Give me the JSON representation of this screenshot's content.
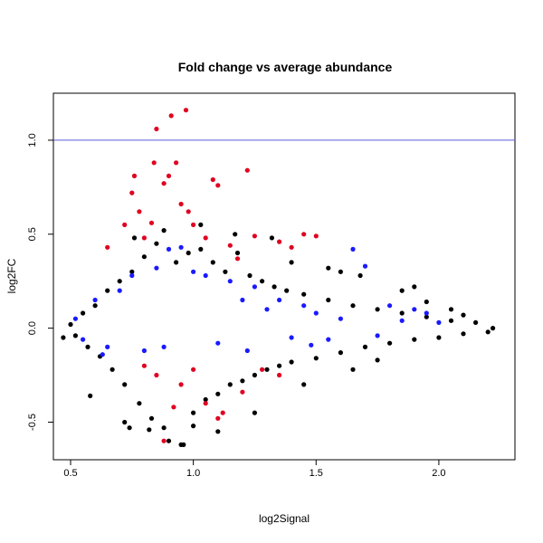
{
  "colors": {
    "background": "#ffffff",
    "axis": "#000000",
    "refline": "#5b5bd6",
    "points_black": "#000000",
    "points_blue": "#1a1aff",
    "points_red": "#e00020"
  },
  "chart_data": {
    "type": "scatter",
    "title": "Fold change vs average abundance",
    "xlabel": "log2Signal",
    "ylabel": "log2FC",
    "xlim": [
      0.43,
      2.31
    ],
    "ylim": [
      -0.7,
      1.25
    ],
    "x_ticks": [
      0.5,
      1.0,
      1.5,
      2.0
    ],
    "x_tick_labels": [
      "0.5",
      "1.0",
      "1.5",
      "2.0"
    ],
    "y_ticks": [
      -0.5,
      0.0,
      0.5,
      1.0
    ],
    "y_tick_labels": [
      "-0.5",
      "0.0",
      "0.5",
      "1.0"
    ],
    "grid": false,
    "legend": "none",
    "reference_lines": [
      {
        "orientation": "horizontal",
        "y": 1.0,
        "color": "#5b5bd6"
      }
    ],
    "series": [
      {
        "color": "#000000",
        "points": [
          [
            0.47,
            -0.05
          ],
          [
            0.5,
            0.02
          ],
          [
            0.52,
            -0.04
          ],
          [
            0.55,
            0.08
          ],
          [
            0.57,
            -0.1
          ],
          [
            0.6,
            0.12
          ],
          [
            0.62,
            -0.15
          ],
          [
            0.65,
            0.2
          ],
          [
            0.67,
            -0.22
          ],
          [
            0.7,
            0.25
          ],
          [
            0.72,
            -0.3
          ],
          [
            0.75,
            0.3
          ],
          [
            0.78,
            -0.4
          ],
          [
            0.8,
            0.38
          ],
          [
            0.83,
            -0.48
          ],
          [
            0.85,
            0.45
          ],
          [
            0.88,
            -0.53
          ],
          [
            0.9,
            -0.6
          ],
          [
            0.93,
            0.35
          ],
          [
            0.95,
            -0.62
          ],
          [
            0.98,
            0.4
          ],
          [
            1.0,
            -0.45
          ],
          [
            1.03,
            0.42
          ],
          [
            1.05,
            -0.38
          ],
          [
            1.08,
            0.35
          ],
          [
            1.1,
            -0.35
          ],
          [
            1.13,
            0.3
          ],
          [
            1.15,
            -0.3
          ],
          [
            1.18,
            0.4
          ],
          [
            1.2,
            -0.28
          ],
          [
            1.23,
            0.28
          ],
          [
            1.25,
            -0.25
          ],
          [
            1.28,
            0.25
          ],
          [
            1.3,
            -0.22
          ],
          [
            1.33,
            0.22
          ],
          [
            1.35,
            -0.2
          ],
          [
            1.38,
            0.2
          ],
          [
            1.4,
            -0.18
          ],
          [
            1.45,
            0.18
          ],
          [
            1.5,
            -0.16
          ],
          [
            1.55,
            0.15
          ],
          [
            1.6,
            -0.13
          ],
          [
            1.65,
            0.12
          ],
          [
            1.7,
            -0.1
          ],
          [
            1.75,
            0.1
          ],
          [
            1.8,
            -0.08
          ],
          [
            1.85,
            0.08
          ],
          [
            1.9,
            -0.06
          ],
          [
            1.95,
            0.06
          ],
          [
            2.0,
            -0.05
          ],
          [
            2.05,
            0.04
          ],
          [
            2.1,
            -0.03
          ],
          [
            2.15,
            0.03
          ],
          [
            2.2,
            -0.02
          ],
          [
            2.22,
            0.0
          ],
          [
            0.58,
            -0.36
          ],
          [
            0.72,
            -0.5
          ],
          [
            0.74,
            -0.53
          ],
          [
            0.82,
            -0.54
          ],
          [
            0.96,
            -0.62
          ],
          [
            0.76,
            0.48
          ],
          [
            0.88,
            0.52
          ],
          [
            1.03,
            0.55
          ],
          [
            1.17,
            0.5
          ],
          [
            1.32,
            0.48
          ],
          [
            1.4,
            0.35
          ],
          [
            1.55,
            0.32
          ],
          [
            1.6,
            0.3
          ],
          [
            1.68,
            0.28
          ],
          [
            1.85,
            0.2
          ],
          [
            1.9,
            0.22
          ],
          [
            1.95,
            0.14
          ],
          [
            2.05,
            0.1
          ],
          [
            2.1,
            0.07
          ],
          [
            1.25,
            -0.45
          ],
          [
            1.1,
            -0.55
          ],
          [
            1.0,
            -0.52
          ],
          [
            1.45,
            -0.3
          ],
          [
            1.65,
            -0.22
          ],
          [
            1.75,
            -0.17
          ]
        ]
      },
      {
        "color": "#1a1aff",
        "points": [
          [
            0.52,
            0.05
          ],
          [
            0.55,
            -0.06
          ],
          [
            0.6,
            0.15
          ],
          [
            0.65,
            -0.1
          ],
          [
            0.7,
            0.2
          ],
          [
            0.75,
            0.28
          ],
          [
            0.8,
            -0.12
          ],
          [
            0.85,
            0.32
          ],
          [
            0.9,
            0.42
          ],
          [
            0.95,
            0.43
          ],
          [
            1.0,
            0.3
          ],
          [
            1.05,
            0.28
          ],
          [
            1.1,
            -0.08
          ],
          [
            1.15,
            0.25
          ],
          [
            1.2,
            0.15
          ],
          [
            1.25,
            0.22
          ],
          [
            1.3,
            0.1
          ],
          [
            1.35,
            0.15
          ],
          [
            1.4,
            -0.05
          ],
          [
            1.45,
            0.12
          ],
          [
            1.5,
            0.08
          ],
          [
            1.55,
            -0.06
          ],
          [
            1.6,
            0.05
          ],
          [
            1.65,
            0.42
          ],
          [
            1.7,
            0.33
          ],
          [
            1.75,
            -0.04
          ],
          [
            1.8,
            0.12
          ],
          [
            1.85,
            0.04
          ],
          [
            1.9,
            0.1
          ],
          [
            1.95,
            0.08
          ],
          [
            2.0,
            0.03
          ],
          [
            0.63,
            -0.14
          ],
          [
            0.88,
            -0.1
          ],
          [
            1.22,
            -0.12
          ],
          [
            1.48,
            -0.09
          ]
        ]
      },
      {
        "color": "#e00020",
        "points": [
          [
            0.65,
            0.43
          ],
          [
            0.72,
            0.55
          ],
          [
            0.75,
            0.72
          ],
          [
            0.76,
            0.81
          ],
          [
            0.78,
            0.62
          ],
          [
            0.8,
            0.48
          ],
          [
            0.83,
            0.56
          ],
          [
            0.84,
            0.88
          ],
          [
            0.85,
            1.06
          ],
          [
            0.88,
            0.77
          ],
          [
            0.9,
            0.81
          ],
          [
            0.91,
            1.13
          ],
          [
            0.93,
            0.88
          ],
          [
            0.95,
            0.66
          ],
          [
            0.97,
            1.16
          ],
          [
            0.98,
            0.62
          ],
          [
            1.0,
            0.55
          ],
          [
            1.05,
            0.48
          ],
          [
            1.08,
            0.79
          ],
          [
            1.1,
            0.76
          ],
          [
            1.15,
            0.44
          ],
          [
            1.18,
            0.37
          ],
          [
            1.22,
            0.84
          ],
          [
            1.25,
            0.49
          ],
          [
            1.35,
            0.46
          ],
          [
            1.4,
            0.43
          ],
          [
            1.45,
            0.5
          ],
          [
            1.5,
            0.49
          ],
          [
            0.8,
            -0.2
          ],
          [
            0.85,
            -0.25
          ],
          [
            0.88,
            -0.6
          ],
          [
            0.92,
            -0.42
          ],
          [
            0.95,
            -0.3
          ],
          [
            1.0,
            -0.22
          ],
          [
            1.05,
            -0.4
          ],
          [
            1.1,
            -0.48
          ],
          [
            1.12,
            -0.45
          ],
          [
            1.2,
            -0.34
          ],
          [
            1.28,
            -0.22
          ],
          [
            1.35,
            -0.25
          ]
        ]
      }
    ]
  }
}
